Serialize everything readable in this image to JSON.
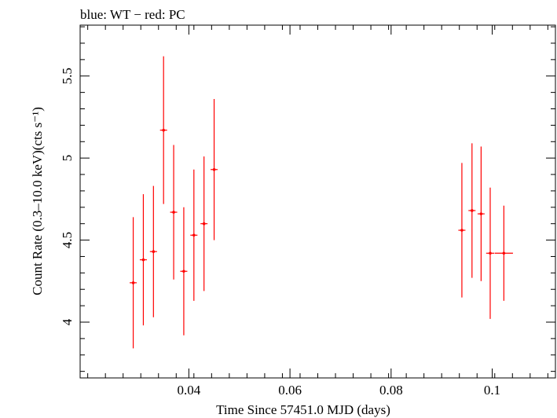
{
  "header": {
    "legend_text": "blue: WT − red: PC"
  },
  "chart_data": {
    "type": "scatter",
    "title": "blue: WT − red: PC",
    "xlabel": "Time Since 57451.0 MJD (days)",
    "ylabel": "Count Rate (0.3–10.0 keV)(cts s⁻¹)",
    "xlim": [
      0.0185,
      0.1125
    ],
    "ylim": [
      3.66,
      5.81
    ],
    "x_ticks": [
      {
        "value": 0.04,
        "label": "0.04"
      },
      {
        "value": 0.06,
        "label": "0.06"
      },
      {
        "value": 0.08,
        "label": "0.08"
      },
      {
        "value": 0.1,
        "label": "0.1"
      }
    ],
    "y_ticks": [
      {
        "value": 4,
        "label": "4"
      },
      {
        "value": 4.5,
        "label": "4.5"
      },
      {
        "value": 5,
        "label": "5"
      },
      {
        "value": 5.5,
        "label": "5.5"
      }
    ],
    "grid": false,
    "series": [
      {
        "color": "#ff0000",
        "points": [
          {
            "x": 0.029,
            "xerr": 0.0007,
            "y": 4.24,
            "yerr": 0.4
          },
          {
            "x": 0.031,
            "xerr": 0.0007,
            "y": 4.38,
            "yerr": 0.4
          },
          {
            "x": 0.033,
            "xerr": 0.0007,
            "y": 4.43,
            "yerr": 0.4
          },
          {
            "x": 0.035,
            "xerr": 0.0007,
            "y": 5.17,
            "yerr": 0.45
          },
          {
            "x": 0.037,
            "xerr": 0.0007,
            "y": 4.67,
            "yerr": 0.41
          },
          {
            "x": 0.039,
            "xerr": 0.0007,
            "y": 4.31,
            "yerr": 0.39
          },
          {
            "x": 0.041,
            "xerr": 0.0007,
            "y": 4.53,
            "yerr": 0.4
          },
          {
            "x": 0.043,
            "xerr": 0.0007,
            "y": 4.6,
            "yerr": 0.41
          },
          {
            "x": 0.045,
            "xerr": 0.0007,
            "y": 4.93,
            "yerr": 0.43
          },
          {
            "x": 0.094,
            "xerr": 0.0007,
            "y": 4.56,
            "yerr": 0.41
          },
          {
            "x": 0.096,
            "xerr": 0.0007,
            "y": 4.68,
            "yerr": 0.41
          },
          {
            "x": 0.0978,
            "xerr": 0.0007,
            "y": 4.66,
            "yerr": 0.41
          },
          {
            "x": 0.0996,
            "xerr": 0.0008,
            "y": 4.42,
            "yerr": 0.4
          },
          {
            "x": 0.1023,
            "xerr": 0.0018,
            "y": 4.42,
            "yerr": 0.29
          }
        ]
      }
    ]
  }
}
